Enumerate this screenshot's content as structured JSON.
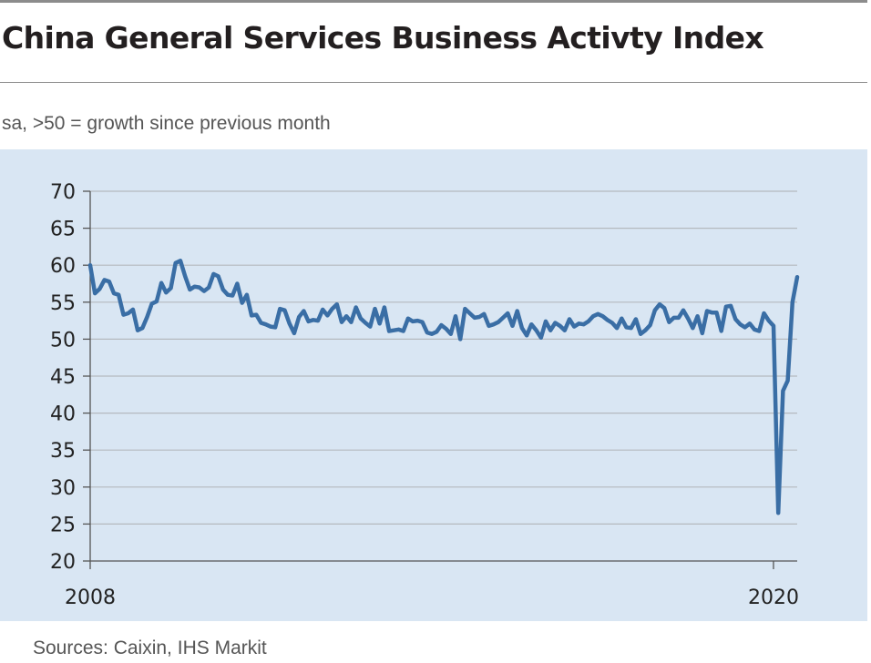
{
  "header": {
    "title": "China General Services Business Activty Index",
    "subtitle": "sa, >50 = growth since previous month"
  },
  "footer": {
    "source": "Sources: Caixin, IHS Markit"
  },
  "colors": {
    "panel_background": "#d9e6f3",
    "line": "#3a6ea5",
    "gridline": "#b4b9be",
    "axis": "#555555"
  },
  "chart_data": {
    "type": "line",
    "title": "China General Services Business Activty Index",
    "subtitle": "sa, >50 = growth since previous month",
    "xlabel": "",
    "ylabel": "",
    "ylim": [
      20,
      70
    ],
    "yticks": [
      20,
      25,
      30,
      35,
      40,
      45,
      50,
      55,
      60,
      65,
      70
    ],
    "xtick_labels": [
      "2008",
      "2020"
    ],
    "xlim": [
      "2008-01",
      "2020-06"
    ],
    "grid": true,
    "legend": "none",
    "series": [
      {
        "x": [
          "2008-01",
          "2008-02",
          "2008-03",
          "2008-04",
          "2008-05",
          "2008-06",
          "2008-07",
          "2008-08",
          "2008-09",
          "2008-10",
          "2008-11",
          "2008-12",
          "2009-01",
          "2009-02",
          "2009-03",
          "2009-04",
          "2009-05",
          "2009-06",
          "2009-07",
          "2009-08",
          "2009-09",
          "2009-10",
          "2009-11",
          "2009-12",
          "2010-01",
          "2010-02",
          "2010-03",
          "2010-04",
          "2010-05",
          "2010-06",
          "2010-07",
          "2010-08",
          "2010-09",
          "2010-10",
          "2010-11",
          "2010-12",
          "2011-01",
          "2011-02",
          "2011-03",
          "2011-04",
          "2011-05",
          "2011-06",
          "2011-07",
          "2011-08",
          "2011-09",
          "2011-10",
          "2011-11",
          "2011-12",
          "2012-01",
          "2012-02",
          "2012-03",
          "2012-04",
          "2012-05",
          "2012-06",
          "2012-07",
          "2012-08",
          "2012-09",
          "2012-10",
          "2012-11",
          "2012-12",
          "2013-01",
          "2013-02",
          "2013-03",
          "2013-04",
          "2013-05",
          "2013-06",
          "2013-07",
          "2013-08",
          "2013-09",
          "2013-10",
          "2013-11",
          "2013-12",
          "2014-01",
          "2014-02",
          "2014-03",
          "2014-04",
          "2014-05",
          "2014-06",
          "2014-07",
          "2014-08",
          "2014-09",
          "2014-10",
          "2014-11",
          "2014-12",
          "2015-01",
          "2015-02",
          "2015-03",
          "2015-04",
          "2015-05",
          "2015-06",
          "2015-07",
          "2015-08",
          "2015-09",
          "2015-10",
          "2015-11",
          "2015-12",
          "2016-01",
          "2016-02",
          "2016-03",
          "2016-04",
          "2016-05",
          "2016-06",
          "2016-07",
          "2016-08",
          "2016-09",
          "2016-10",
          "2016-11",
          "2016-12",
          "2017-01",
          "2017-02",
          "2017-03",
          "2017-04",
          "2017-05",
          "2017-06",
          "2017-07",
          "2017-08",
          "2017-09",
          "2017-10",
          "2017-11",
          "2017-12",
          "2018-01",
          "2018-02",
          "2018-03",
          "2018-04",
          "2018-05",
          "2018-06",
          "2018-07",
          "2018-08",
          "2018-09",
          "2018-10",
          "2018-11",
          "2018-12",
          "2019-01",
          "2019-02",
          "2019-03",
          "2019-04",
          "2019-05",
          "2019-06",
          "2019-07",
          "2019-08",
          "2019-09",
          "2019-10",
          "2019-11",
          "2019-12",
          "2020-01",
          "2020-02",
          "2020-03",
          "2020-04",
          "2020-05",
          "2020-06"
        ],
        "values": [
          60.0,
          56.2,
          56.8,
          58.0,
          57.8,
          56.2,
          56.0,
          53.3,
          53.5,
          54.0,
          51.2,
          51.5,
          53.0,
          54.8,
          55.1,
          57.6,
          56.3,
          56.9,
          60.3,
          60.6,
          58.5,
          56.7,
          57.1,
          57.0,
          56.5,
          57.0,
          58.8,
          58.5,
          56.7,
          56.0,
          55.9,
          57.5,
          54.9,
          56.0,
          53.2,
          53.3,
          52.2,
          52.0,
          51.7,
          51.6,
          54.1,
          53.9,
          52.1,
          50.8,
          53.0,
          53.8,
          52.4,
          52.6,
          52.5,
          54.0,
          53.2,
          54.1,
          54.7,
          52.3,
          53.1,
          52.3,
          54.3,
          52.8,
          52.2,
          51.7,
          54.1,
          52.1,
          54.3,
          51.1,
          51.2,
          51.3,
          51.1,
          52.8,
          52.4,
          52.5,
          52.3,
          50.9,
          50.7,
          51.0,
          51.9,
          51.4,
          50.7,
          53.1,
          50.0,
          54.1,
          53.5,
          52.9,
          53.0,
          53.4,
          51.8,
          52.0,
          52.3,
          52.9,
          53.5,
          51.8,
          53.8,
          51.5,
          50.5,
          52.0,
          51.2,
          50.2,
          52.4,
          51.2,
          52.2,
          51.8,
          51.2,
          52.7,
          51.7,
          52.1,
          52.0,
          52.4,
          53.1,
          53.4,
          53.1,
          52.6,
          52.2,
          51.5,
          52.8,
          51.6,
          51.5,
          52.7,
          50.7,
          51.2,
          51.9,
          53.9,
          54.7,
          54.2,
          52.3,
          52.9,
          52.9,
          53.9,
          52.8,
          51.5,
          53.1,
          50.8,
          53.8,
          53.6,
          53.6,
          51.1,
          54.4,
          54.5,
          52.7,
          52.0,
          51.6,
          52.1,
          51.3,
          51.1,
          53.5,
          52.5,
          51.8,
          26.5,
          43.0,
          44.4,
          55.0,
          58.4
        ]
      }
    ]
  }
}
